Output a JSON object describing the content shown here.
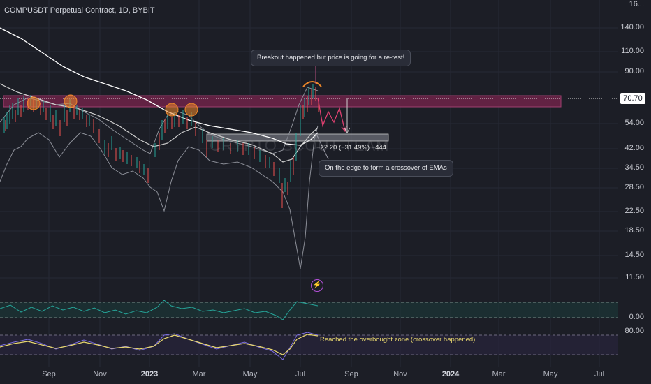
{
  "header": {
    "title": "COMPUSDT Perpetual Contract, 1D, BYBIT"
  },
  "price_axis": {
    "ticks": [
      "140.00",
      "110.00",
      "90.00",
      "54.00",
      "42.00",
      "34.50",
      "28.50",
      "22.50",
      "18.50",
      "14.50",
      "11.50"
    ],
    "current_price": "70.70",
    "partial_top_label": "16..."
  },
  "oscillator_axis": {
    "ticks": [
      "0.00",
      "80.00"
    ]
  },
  "time_axis": {
    "months": [
      "Sep",
      "Nov",
      "2023",
      "Mar",
      "May",
      "Jul",
      "Sep",
      "Nov",
      "2024",
      "Mar",
      "May",
      "Jul"
    ]
  },
  "annotations": {
    "breakout": "Breakout happened but price is going for a re-test!",
    "measure": "−22.20 (−31.49%) −444",
    "crossover": "On the edge to form a crossover of EMAs",
    "overbought": "Reached the overbought zone (crossover happened)"
  },
  "watermark": "CRYPTO SCOUT TEAM",
  "colors": {
    "background": "#1c1e26",
    "resistance_zone": "#7a2552",
    "up_candle": "#26a69a",
    "down_candle": "#ef5350",
    "ema_fast": "#d9d9d9",
    "ema_slow": "#ffffff",
    "rsi_line": "#e8d76e",
    "stoch_fill": "#1e5f57",
    "circle_highlight": "#f0892a",
    "projection": "#e04070"
  },
  "icons": {
    "alert": "lightning-bolt-icon"
  }
}
